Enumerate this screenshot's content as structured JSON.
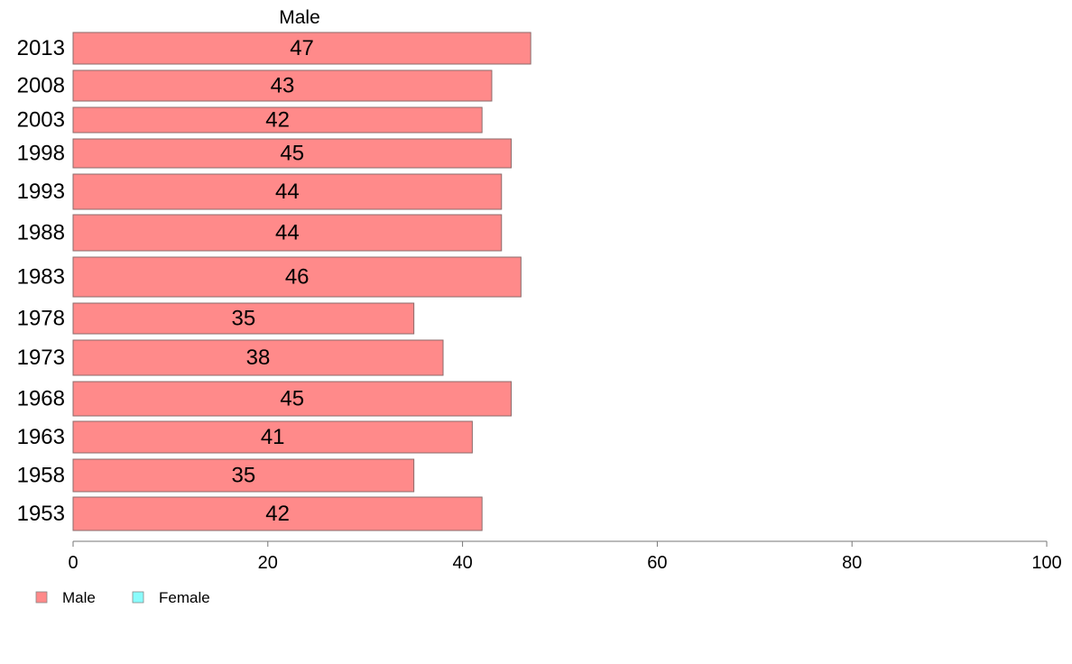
{
  "chart_data": {
    "type": "bar",
    "orientation": "horizontal",
    "title": "Male",
    "categories": [
      "2013",
      "2008",
      "2003",
      "1998",
      "1993",
      "1988",
      "1983",
      "1978",
      "1973",
      "1968",
      "1963",
      "1958",
      "1953"
    ],
    "series": [
      {
        "name": "Male",
        "values": [
          47,
          43,
          42,
          45,
          44,
          44,
          46,
          35,
          38,
          45,
          41,
          35,
          42
        ]
      }
    ],
    "data_labels": [
      "47",
      "43",
      "42",
      "45",
      "44",
      "44",
      "46",
      "35",
      "38",
      "45",
      "41",
      "35",
      "42"
    ],
    "xlim": [
      0,
      100
    ],
    "xticks": [
      "0",
      "20",
      "40",
      "60",
      "80",
      "100"
    ],
    "xlabel": "",
    "ylabel": "",
    "grid": false,
    "legend": {
      "placement": "bottom-left",
      "items": [
        {
          "label": "Male",
          "color": "#ff8a8a"
        },
        {
          "label": "Female",
          "color": "#8afcfc"
        }
      ]
    },
    "colors": {
      "male_bar": "#ff8a8a",
      "bar_border": "#8b6a6a",
      "axis": "#777777"
    }
  }
}
